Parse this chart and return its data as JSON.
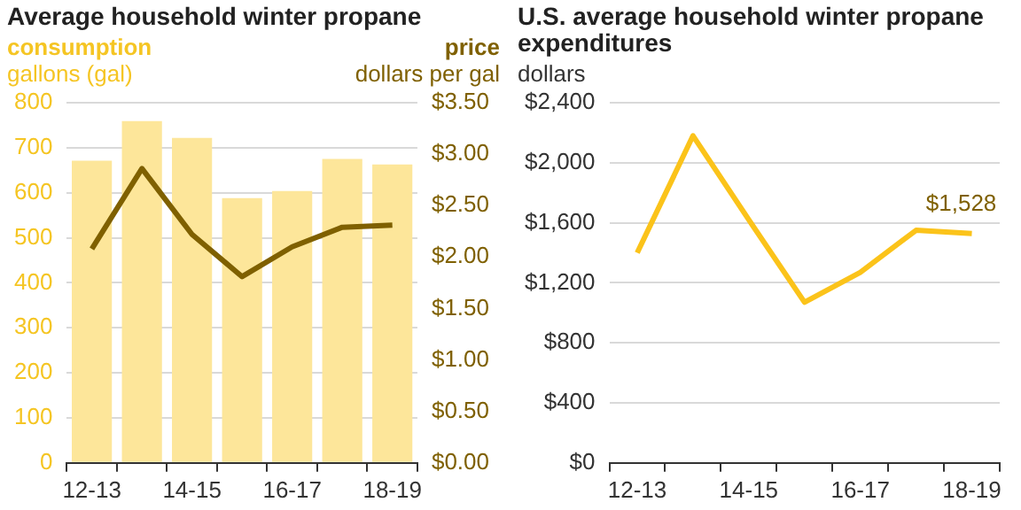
{
  "chart_data": [
    {
      "type": "bar",
      "title": "Average household winter propane",
      "categories": [
        "12-13",
        null,
        "14-15",
        null,
        "16-17",
        null,
        "18-19"
      ],
      "ylabel": "gallons (gal)",
      "y2label": "dollars per gal",
      "ylim": [
        0,
        800
      ],
      "yticks": [
        0,
        100,
        200,
        300,
        400,
        500,
        600,
        700,
        800
      ],
      "y2lim": [
        0,
        3.5
      ],
      "y2ticks": [
        {
          "value": 0,
          "label": "$0.00"
        },
        {
          "value": 0.5,
          "label": "$0.50"
        },
        {
          "value": 1,
          "label": "$1.00"
        },
        {
          "value": 1.5,
          "label": "$1.50"
        },
        {
          "value": 2,
          "label": "$2.00"
        },
        {
          "value": 2.5,
          "label": "$2.50"
        },
        {
          "value": 3,
          "label": "$3.00"
        },
        {
          "value": 3.5,
          "label": "$3.50"
        }
      ],
      "grid": "y",
      "marker": "none",
      "series": [
        {
          "name": "consumption",
          "color": "#fde69a",
          "values": [
            671,
            759,
            722,
            588,
            604,
            675,
            663
          ]
        },
        {
          "name": "price",
          "type": "line",
          "axis": "y2",
          "color": "#7f6000",
          "values": [
            2.08,
            2.86,
            2.22,
            1.81,
            2.1,
            2.29,
            2.31
          ]
        }
      ]
    },
    {
      "type": "line",
      "title": "U.S. average household winter propane expenditures",
      "categories": [
        "12-13",
        null,
        "14-15",
        null,
        "16-17",
        null,
        "18-19"
      ],
      "ylabel": "dollars",
      "ylim": [
        0,
        2400
      ],
      "yticks": [
        {
          "value": 0,
          "label": "$0"
        },
        {
          "value": 400,
          "label": "$400"
        },
        {
          "value": 800,
          "label": "$800"
        },
        {
          "value": 1200,
          "label": "$1,200"
        },
        {
          "value": 1600,
          "label": "$1,600"
        },
        {
          "value": 2000,
          "label": "$2,000"
        },
        {
          "value": 2400,
          "label": "$2,400"
        }
      ],
      "grid": "y",
      "marker": "none",
      "annotations": [
        {
          "text": "$1,528",
          "x": "18-19",
          "y": 1528
        }
      ],
      "series": [
        {
          "color": "#fbc31a",
          "values": [
            1400,
            2180,
            1620,
            1070,
            1270,
            1550,
            1528
          ]
        }
      ]
    }
  ]
}
